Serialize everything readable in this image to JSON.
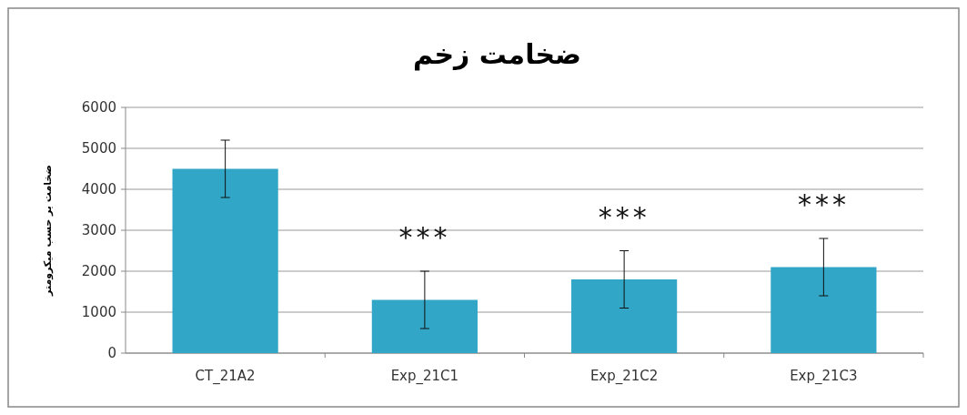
{
  "chart_data": {
    "type": "bar",
    "title": "ضخامت زخم",
    "ylabel": "ضخامت بر حسب میکرومتر",
    "categories": [
      "CT_21A2",
      "Exp_21C1",
      "Exp_21C2",
      "Exp_21C3"
    ],
    "values": [
      4500,
      1300,
      1800,
      2100
    ],
    "errors": [
      700,
      700,
      700,
      700
    ],
    "color": "#31a6c6",
    "ylim": [
      0,
      6000
    ],
    "yticks": [
      0,
      1000,
      2000,
      3000,
      4000,
      5000,
      6000
    ],
    "grid": "y",
    "annotations": [
      "***",
      "***",
      "***"
    ]
  }
}
